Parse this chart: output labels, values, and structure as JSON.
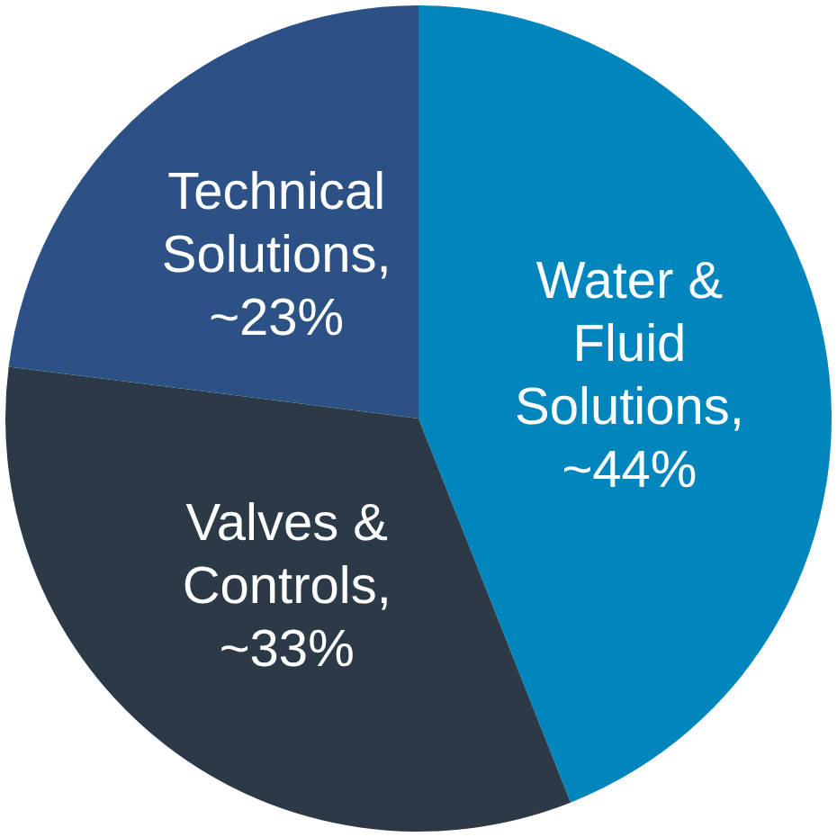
{
  "chart_data": {
    "type": "pie",
    "categories": [
      "Water & Fluid Solutions",
      "Valves & Controls",
      "Technical Solutions"
    ],
    "values": [
      44,
      33,
      23
    ],
    "colors": [
      "#0086bd",
      "#2b3a46",
      "#2b5185"
    ],
    "value_labels": [
      ", ~44%",
      ", ~33%",
      ", ~23%"
    ],
    "legend": false
  }
}
